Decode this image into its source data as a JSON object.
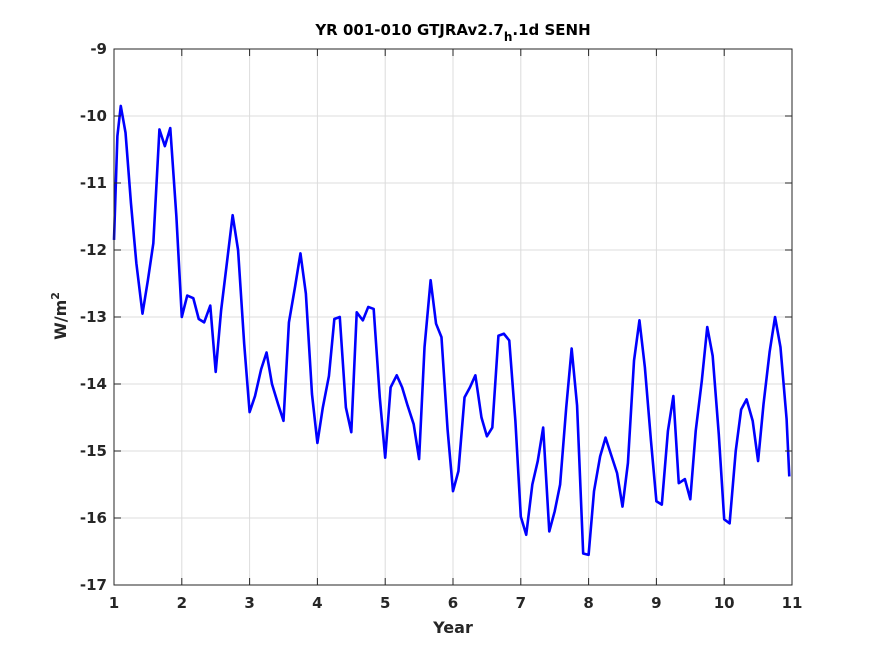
{
  "chart_data": {
    "type": "line",
    "title_parts": {
      "prefix": "YR 001-010 GTJRAv2.7",
      "subscript": "h",
      "suffix": ".1d SENH"
    },
    "xlabel": "Year",
    "ylabel_parts": {
      "base": "W/m",
      "superscript": "2"
    },
    "xlim": [
      1,
      11
    ],
    "ylim": [
      -17,
      -9
    ],
    "xticks": [
      1,
      2,
      3,
      4,
      5,
      6,
      7,
      8,
      9,
      10,
      11
    ],
    "xtick_labels": [
      "1",
      "2",
      "3",
      "4",
      "5",
      "6",
      "7",
      "8",
      "9",
      "10",
      "11"
    ],
    "yticks": [
      -17,
      -16,
      -15,
      -14,
      -13,
      -12,
      -11,
      -10,
      -9
    ],
    "ytick_labels": [
      "-17",
      "-16",
      "-15",
      "-14",
      "-13",
      "-12",
      "-11",
      "-10",
      "-9"
    ],
    "grid": true,
    "line_color": "#0000ff",
    "series": [
      {
        "x": [
          1.0,
          1.05,
          1.1,
          1.17,
          1.25,
          1.33,
          1.42,
          1.5,
          1.58,
          1.67,
          1.75,
          1.83,
          1.92,
          2.0,
          2.08,
          2.17,
          2.25,
          2.33,
          2.42,
          2.5,
          2.58,
          2.67,
          2.75,
          2.83,
          2.92,
          3.0,
          3.08,
          3.17,
          3.25,
          3.33,
          3.42,
          3.5,
          3.58,
          3.67,
          3.75,
          3.83,
          3.92,
          4.0,
          4.08,
          4.17,
          4.25,
          4.33,
          4.42,
          4.5,
          4.58,
          4.67,
          4.75,
          4.83,
          4.92,
          5.0,
          5.08,
          5.17,
          5.25,
          5.33,
          5.42,
          5.5,
          5.58,
          5.67,
          5.75,
          5.83,
          5.92,
          6.0,
          6.08,
          6.17,
          6.25,
          6.33,
          6.42,
          6.5,
          6.58,
          6.67,
          6.75,
          6.83,
          6.92,
          7.0,
          7.08,
          7.17,
          7.25,
          7.33,
          7.42,
          7.5,
          7.58,
          7.67,
          7.75,
          7.83,
          7.92,
          8.0,
          8.08,
          8.17,
          8.25,
          8.33,
          8.42,
          8.5,
          8.58,
          8.67,
          8.75,
          8.83,
          8.92,
          9.0,
          9.08,
          9.17,
          9.25,
          9.33,
          9.42,
          9.5,
          9.58,
          9.67,
          9.75,
          9.83,
          9.92,
          10.0,
          10.08,
          10.17,
          10.25,
          10.33,
          10.42,
          10.5,
          10.58,
          10.67,
          10.75,
          10.83,
          10.92,
          10.96
        ],
        "y": [
          -11.85,
          -10.3,
          -9.85,
          -10.25,
          -11.3,
          -12.2,
          -12.95,
          -12.45,
          -11.9,
          -10.2,
          -10.45,
          -10.18,
          -11.5,
          -13.0,
          -12.68,
          -12.72,
          -13.03,
          -13.08,
          -12.83,
          -13.82,
          -12.9,
          -12.15,
          -11.48,
          -12.0,
          -13.4,
          -14.42,
          -14.18,
          -13.78,
          -13.53,
          -14.0,
          -14.3,
          -14.55,
          -13.08,
          -12.55,
          -12.05,
          -12.65,
          -14.15,
          -14.88,
          -14.35,
          -13.88,
          -13.03,
          -13.0,
          -14.35,
          -14.72,
          -12.93,
          -13.05,
          -12.85,
          -12.88,
          -14.2,
          -15.1,
          -14.05,
          -13.87,
          -14.05,
          -14.32,
          -14.6,
          -15.12,
          -13.45,
          -12.45,
          -13.1,
          -13.3,
          -14.68,
          -15.6,
          -15.3,
          -14.2,
          -14.05,
          -13.87,
          -14.5,
          -14.78,
          -14.65,
          -13.28,
          -13.25,
          -13.35,
          -14.55,
          -15.98,
          -16.25,
          -15.5,
          -15.15,
          -14.65,
          -16.2,
          -15.9,
          -15.5,
          -14.35,
          -13.47,
          -14.32,
          -16.53,
          -16.55,
          -15.6,
          -15.08,
          -14.8,
          -15.05,
          -15.33,
          -15.83,
          -15.18,
          -13.65,
          -13.05,
          -13.75,
          -14.85,
          -15.75,
          -15.8,
          -14.7,
          -14.18,
          -15.48,
          -15.42,
          -15.72,
          -14.7,
          -13.95,
          -13.15,
          -13.58,
          -14.75,
          -16.02,
          -16.08,
          -15.0,
          -14.38,
          -14.23,
          -14.55,
          -15.15,
          -14.3,
          -13.52,
          -13.0,
          -13.45,
          -14.52,
          -15.38
        ]
      }
    ]
  }
}
